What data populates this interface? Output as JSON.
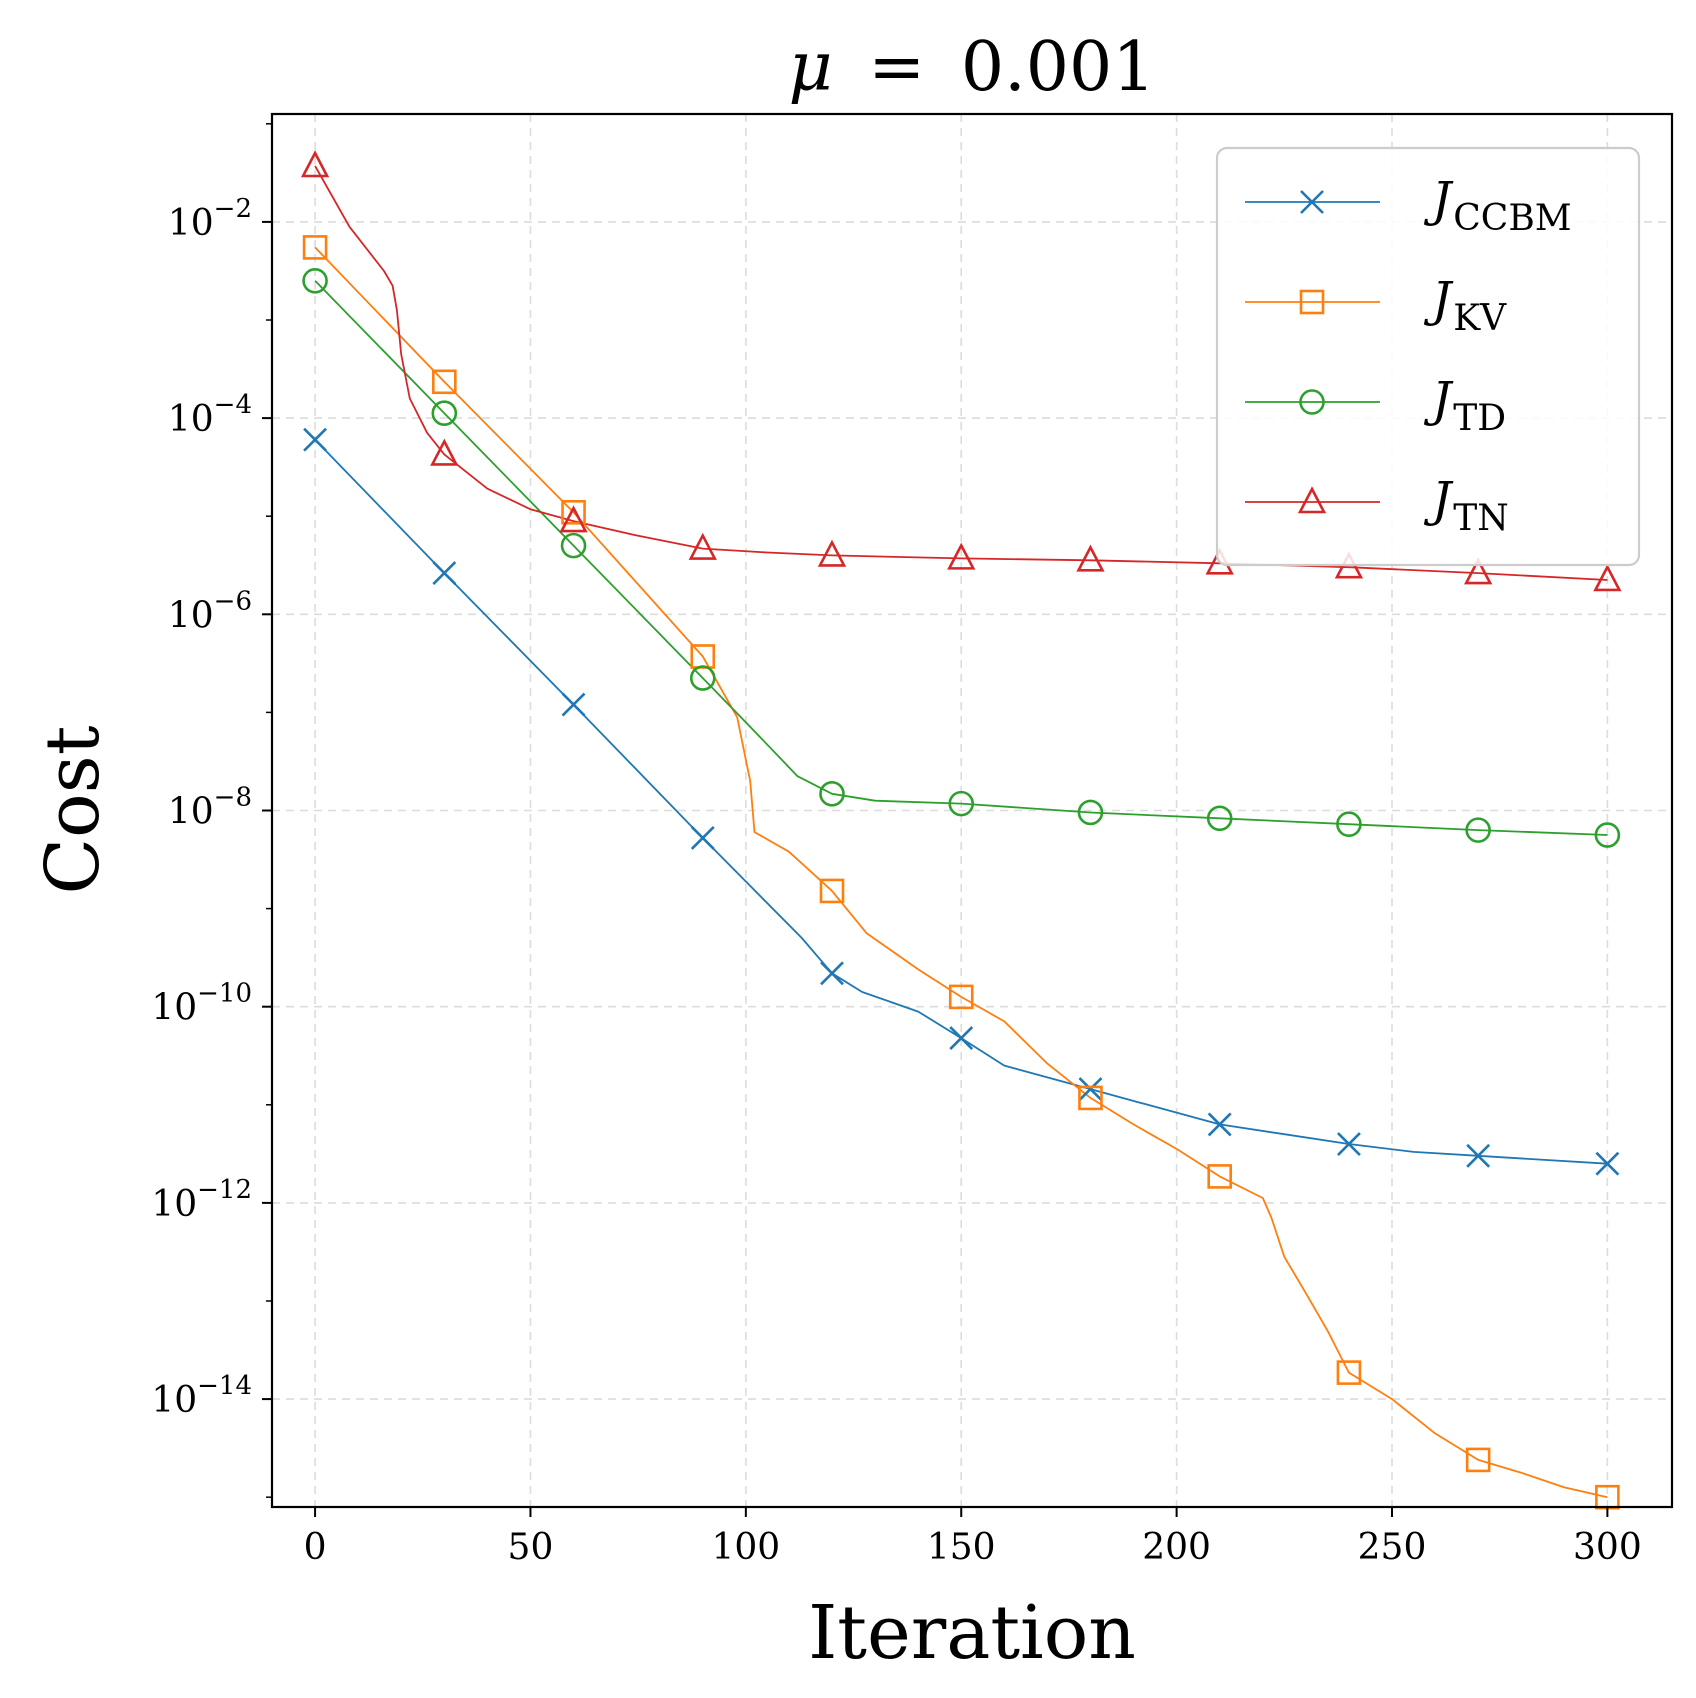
{
  "chart_data": {
    "type": "line",
    "title": "μ = 0.001",
    "title_parts": {
      "symbol": "μ",
      "eq": "=",
      "value": "0.001"
    },
    "xlabel": "Iteration",
    "ylabel": "Cost",
    "xlim": [
      -10,
      315
    ],
    "ylim_log10": [
      -15.1,
      -0.9
    ],
    "yscale": "log",
    "x_ticks": [
      0,
      50,
      100,
      150,
      200,
      250,
      300
    ],
    "y_ticks": [
      {
        "exp": -2,
        "base": "10",
        "sup": "−2"
      },
      {
        "exp": -4,
        "base": "10",
        "sup": "−4"
      },
      {
        "exp": -6,
        "base": "10",
        "sup": "−6"
      },
      {
        "exp": -8,
        "base": "10",
        "sup": "−8"
      },
      {
        "exp": -10,
        "base": "10",
        "sup": "−10"
      },
      {
        "exp": -12,
        "base": "10",
        "sup": "−12"
      },
      {
        "exp": -14,
        "base": "10",
        "sup": "−14"
      }
    ],
    "grid": true,
    "legend_position": "top-right",
    "series": [
      {
        "name": "J_CCBM",
        "label_main": "J",
        "label_sub": "CCBM",
        "color": "#1f77b4",
        "marker": "x",
        "x": [
          0,
          30,
          60,
          90,
          120,
          150,
          180,
          210,
          240,
          270,
          300
        ],
        "log10_y": [
          -4.22,
          -5.58,
          -6.92,
          -8.28,
          -9.66,
          -10.32,
          -10.84,
          -11.2,
          -11.4,
          -11.52,
          -11.6
        ],
        "curve_x": [
          0,
          30,
          60,
          90,
          113,
          120,
          127,
          140,
          150,
          160,
          180,
          195,
          210,
          225,
          240,
          255,
          270,
          300
        ],
        "curve_log10_y": [
          -4.22,
          -5.58,
          -6.92,
          -8.28,
          -9.3,
          -9.66,
          -9.85,
          -10.05,
          -10.32,
          -10.6,
          -10.84,
          -11.02,
          -11.2,
          -11.3,
          -11.4,
          -11.48,
          -11.52,
          -11.6
        ]
      },
      {
        "name": "J_KV",
        "label_main": "J",
        "label_sub": "KV",
        "color": "#ff7f0e",
        "marker": "square",
        "x": [
          0,
          30,
          60,
          90,
          120,
          150,
          180,
          210,
          240,
          270,
          300
        ],
        "log10_y": [
          -2.26,
          -3.63,
          -4.96,
          -6.43,
          -8.82,
          -9.9,
          -10.93,
          -11.73,
          -13.73,
          -14.62,
          -15.0
        ],
        "curve_x": [
          0,
          30,
          60,
          90,
          98,
          101,
          102,
          110,
          120,
          128,
          140,
          150,
          160,
          170,
          180,
          190,
          200,
          210,
          220,
          222,
          225,
          230,
          235,
          240,
          250,
          260,
          270,
          280,
          290,
          295,
          300
        ],
        "curve_log10_y": [
          -2.26,
          -3.63,
          -4.96,
          -6.43,
          -7.05,
          -7.7,
          -8.22,
          -8.42,
          -8.82,
          -9.25,
          -9.62,
          -9.9,
          -10.15,
          -10.58,
          -10.93,
          -11.2,
          -11.45,
          -11.73,
          -11.95,
          -12.15,
          -12.55,
          -12.92,
          -13.3,
          -13.73,
          -14.0,
          -14.35,
          -14.62,
          -14.75,
          -14.9,
          -14.95,
          -15.0
        ]
      },
      {
        "name": "J_TD",
        "label_main": "J",
        "label_sub": "TD",
        "color": "#2ca02c",
        "marker": "circle",
        "x": [
          0,
          30,
          60,
          90,
          120,
          150,
          180,
          210,
          240,
          270,
          300
        ],
        "log10_y": [
          -2.6,
          -3.95,
          -5.3,
          -6.65,
          -7.83,
          -7.93,
          -8.02,
          -8.08,
          -8.14,
          -8.2,
          -8.25
        ],
        "curve_x": [
          0,
          30,
          60,
          90,
          100,
          112,
          120,
          130,
          150,
          180,
          210,
          240,
          270,
          300
        ],
        "curve_log10_y": [
          -2.6,
          -3.95,
          -5.3,
          -6.65,
          -7.1,
          -7.65,
          -7.83,
          -7.9,
          -7.93,
          -8.02,
          -8.08,
          -8.14,
          -8.2,
          -8.25
        ]
      },
      {
        "name": "J_TN",
        "label_main": "J",
        "label_sub": "TN",
        "color": "#d62728",
        "marker": "triangle",
        "x": [
          0,
          30,
          60,
          90,
          120,
          150,
          180,
          210,
          240,
          270,
          300
        ],
        "log10_y": [
          -1.43,
          -4.37,
          -5.05,
          -5.33,
          -5.4,
          -5.43,
          -5.45,
          -5.48,
          -5.52,
          -5.58,
          -5.65
        ],
        "curve_x": [
          0,
          8,
          16,
          18,
          19,
          20,
          22,
          26,
          30,
          40,
          50,
          60,
          75,
          90,
          105,
          120,
          150,
          180,
          210,
          240,
          270,
          300
        ],
        "curve_log10_y": [
          -1.43,
          -2.05,
          -2.5,
          -2.65,
          -2.9,
          -3.35,
          -3.8,
          -4.15,
          -4.37,
          -4.72,
          -4.93,
          -5.05,
          -5.2,
          -5.33,
          -5.37,
          -5.4,
          -5.43,
          -5.45,
          -5.48,
          -5.52,
          -5.58,
          -5.65
        ]
      }
    ]
  }
}
